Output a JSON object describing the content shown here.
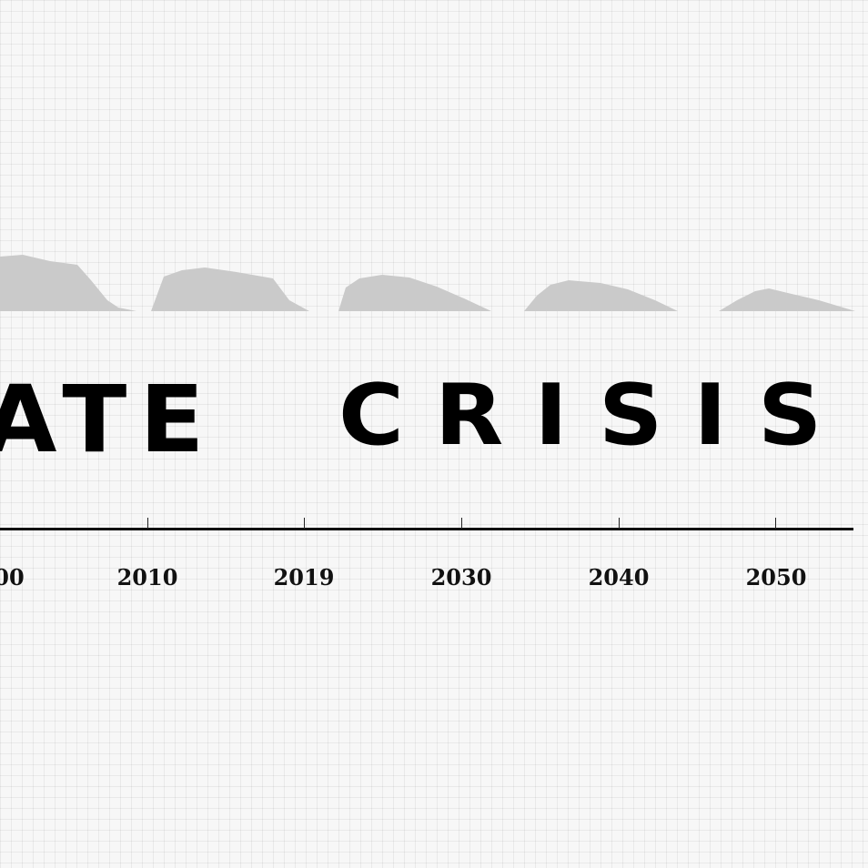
{
  "headline": {
    "part1": "ATE",
    "part2": "CRISIS"
  },
  "timeline": {
    "ticks": [
      {
        "label": "00"
      },
      {
        "label": "2010"
      },
      {
        "label": "2019"
      },
      {
        "label": "2030"
      },
      {
        "label": "2040"
      },
      {
        "label": "2050"
      }
    ]
  },
  "colors": {
    "background": "#f7f7f7",
    "grid": "#e4e4e4",
    "mound": "#cacaca",
    "ink": "#000000"
  }
}
